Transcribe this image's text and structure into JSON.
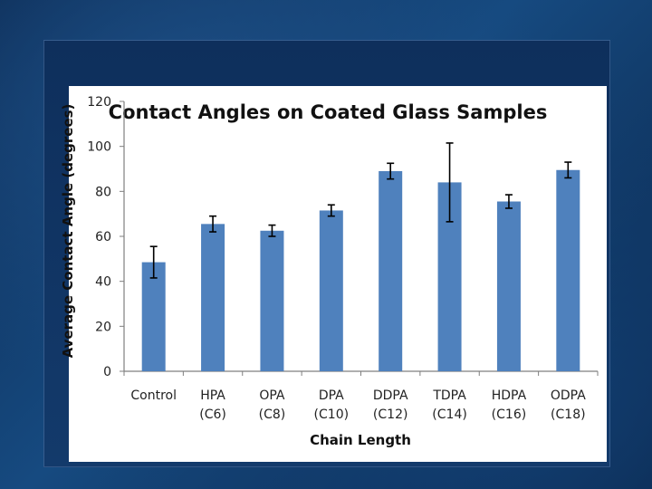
{
  "chart_data": {
    "type": "bar",
    "title": "Contact Angles on Coated Glass Samples",
    "xlabel": "Chain Length",
    "ylabel": "Average Contact Angle (degrees)",
    "ylim": [
      0,
      120
    ],
    "yticks": [
      0,
      20,
      40,
      60,
      80,
      100,
      120
    ],
    "categories": [
      [
        "Control"
      ],
      [
        "HPA",
        "(C6)"
      ],
      [
        "OPA",
        "(C8)"
      ],
      [
        "DPA",
        "(C10)"
      ],
      [
        "DDPA",
        "(C12)"
      ],
      [
        "TDPA",
        "(C14)"
      ],
      [
        "HDPA",
        "(C16)"
      ],
      [
        "ODPA",
        "(C18)"
      ]
    ],
    "values": [
      48.5,
      65.5,
      62.5,
      71.5,
      89,
      84,
      75.5,
      89.5
    ],
    "errors": [
      7,
      3.5,
      2.5,
      2.5,
      3.5,
      17.5,
      3,
      3.5
    ],
    "grid": false,
    "legend": "none",
    "bar_color": "#4f81bd"
  }
}
